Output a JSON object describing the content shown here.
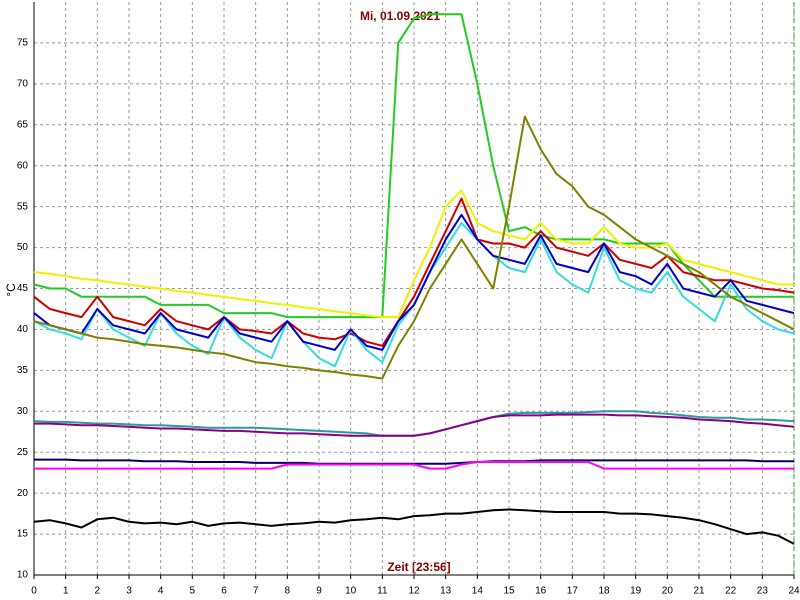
{
  "chart_data": {
    "type": "line",
    "title": "Mi, 01.09.2021",
    "x_label": "Zeit [23:56]",
    "y_label": "°C",
    "xlim": [
      0,
      24
    ],
    "ylim": [
      10,
      80
    ],
    "xticks": [
      0,
      1,
      2,
      3,
      4,
      5,
      6,
      7,
      8,
      9,
      10,
      11,
      12,
      13,
      14,
      15,
      16,
      17,
      18,
      19,
      20,
      21,
      22,
      23,
      24
    ],
    "yticks": [
      10,
      15,
      20,
      25,
      30,
      35,
      40,
      45,
      50,
      55,
      60,
      65,
      70,
      75
    ],
    "grid": true,
    "x": [
      0,
      0.5,
      1,
      1.5,
      2,
      2.5,
      3,
      3.5,
      4,
      4.5,
      5,
      5.5,
      6,
      6.5,
      7,
      7.5,
      8,
      8.5,
      9,
      9.5,
      10,
      10.5,
      11,
      11.5,
      12,
      12.5,
      13,
      13.5,
      14,
      14.5,
      15,
      15.5,
      16,
      16.5,
      17,
      17.5,
      18,
      18.5,
      19,
      19.5,
      20,
      20.5,
      21,
      21.5,
      22,
      22.5,
      23,
      23.5,
      24
    ],
    "series": [
      {
        "color": "#22cc22",
        "values": [
          45.5,
          45,
          45,
          44,
          44,
          44,
          44,
          44,
          43,
          43,
          43,
          43,
          42,
          42,
          42,
          42,
          41.5,
          41.5,
          41.5,
          41.5,
          41.5,
          41.5,
          41.5,
          75,
          78,
          78.5,
          78.5,
          78.5,
          70,
          60,
          52,
          52.5,
          51.5,
          51,
          51,
          51,
          51,
          50.5,
          50.5,
          50.5,
          50.5,
          48,
          46,
          44,
          44,
          44,
          44,
          44,
          44
        ]
      },
      {
        "color": "#f0f000",
        "values": [
          47,
          46.8,
          46.5,
          46.2,
          46,
          45.7,
          45.5,
          45.2,
          45,
          44.7,
          44.5,
          44.2,
          44,
          43.7,
          43.5,
          43.2,
          43,
          42.7,
          42.5,
          42.2,
          42,
          41.7,
          41.5,
          41.5,
          46,
          50,
          55,
          57,
          53,
          52,
          51.5,
          51,
          53,
          51,
          50.5,
          50.5,
          52.5,
          50.5,
          50,
          50,
          50.5,
          48.5,
          48,
          47.5,
          47,
          46.5,
          46,
          45.5,
          45.5
        ]
      },
      {
        "color": "#cc0000",
        "values": [
          44,
          42.5,
          42,
          41.5,
          44,
          41.5,
          41,
          40.5,
          42.5,
          41,
          40.5,
          40,
          41.5,
          40,
          39.8,
          39.5,
          41,
          39.5,
          39,
          38.8,
          39.5,
          38.5,
          38,
          41,
          44,
          48,
          52,
          56,
          51,
          50.5,
          50.5,
          50,
          52,
          50,
          49.5,
          49,
          50.5,
          48.5,
          48,
          47.5,
          49,
          47,
          46.5,
          46,
          46,
          45.5,
          45,
          44.8,
          44.5
        ]
      },
      {
        "color": "#33dddd",
        "values": [
          41,
          40,
          39.5,
          38.8,
          42.5,
          40,
          39,
          38,
          42,
          39.5,
          38,
          37,
          41.5,
          39,
          37.5,
          36.5,
          41,
          38.5,
          36.5,
          35.5,
          40,
          37.5,
          36,
          40.5,
          43,
          47,
          50,
          53,
          51,
          49,
          47.5,
          47,
          51,
          47,
          45.5,
          44.5,
          50,
          46,
          45,
          44.5,
          47,
          44,
          42.5,
          41,
          45.5,
          42.5,
          41,
          40,
          39.5
        ]
      },
      {
        "color": "#0000cc",
        "values": [
          42,
          40.5,
          40,
          39.5,
          42.5,
          40.5,
          40,
          39.5,
          42,
          40,
          39.5,
          39,
          41.5,
          39.5,
          39,
          38.5,
          41,
          38.5,
          38,
          37.5,
          40,
          38,
          37.5,
          41,
          43,
          47,
          51,
          54,
          51,
          49,
          48.5,
          48,
          51.5,
          48,
          47.5,
          47,
          50.5,
          47,
          46.5,
          45.5,
          48,
          45,
          44.5,
          44,
          46,
          43.5,
          43,
          42.5,
          42
        ]
      },
      {
        "color": "#808000",
        "values": [
          41,
          40.5,
          40,
          39.5,
          39,
          38.8,
          38.5,
          38.2,
          38,
          37.8,
          37.5,
          37.2,
          37,
          36.5,
          36,
          35.8,
          35.5,
          35.3,
          35,
          34.8,
          34.5,
          34.3,
          34,
          38,
          41,
          45,
          48,
          51,
          48,
          45,
          55,
          66,
          62,
          59,
          57.5,
          55,
          54,
          52.5,
          51,
          50,
          49,
          48,
          47,
          45.5,
          44,
          43,
          42,
          41,
          40
        ]
      },
      {
        "color": "#339999",
        "values": [
          28.8,
          28.7,
          28.7,
          28.6,
          28.5,
          28.5,
          28.4,
          28.3,
          28.3,
          28.2,
          28.1,
          28,
          28,
          28,
          28,
          27.9,
          27.8,
          27.7,
          27.6,
          27.5,
          27.4,
          27.3,
          27,
          27,
          27,
          27.3,
          27.8,
          28.3,
          28.8,
          29.3,
          29.7,
          29.8,
          29.8,
          29.8,
          29.8,
          29.9,
          30,
          30,
          30,
          29.8,
          29.7,
          29.5,
          29.3,
          29.2,
          29.2,
          29,
          29,
          28.9,
          28.8
        ]
      },
      {
        "color": "#880088",
        "values": [
          28.5,
          28.5,
          28.4,
          28.3,
          28.3,
          28.2,
          28.1,
          28,
          27.9,
          27.9,
          27.8,
          27.7,
          27.6,
          27.6,
          27.5,
          27.4,
          27.3,
          27.3,
          27.2,
          27.1,
          27,
          27,
          27,
          27,
          27,
          27.3,
          27.8,
          28.3,
          28.8,
          29.3,
          29.5,
          29.5,
          29.5,
          29.6,
          29.6,
          29.6,
          29.6,
          29.5,
          29.5,
          29.4,
          29.3,
          29.2,
          29,
          28.9,
          28.8,
          28.6,
          28.5,
          28.3,
          28.1
        ]
      },
      {
        "color": "#000066",
        "values": [
          24.1,
          24.1,
          24.1,
          24,
          24,
          24,
          24,
          23.9,
          23.9,
          23.9,
          23.8,
          23.8,
          23.8,
          23.8,
          23.7,
          23.7,
          23.7,
          23.7,
          23.6,
          23.6,
          23.6,
          23.6,
          23.6,
          23.6,
          23.6,
          23.6,
          23.6,
          23.7,
          23.8,
          23.9,
          23.9,
          23.9,
          24,
          24,
          24,
          24,
          24,
          24,
          24,
          24,
          24,
          24,
          24,
          24,
          24,
          24,
          23.9,
          23.9,
          23.9
        ]
      },
      {
        "color": "#ff00ff",
        "values": [
          23,
          23,
          23,
          23,
          23,
          23,
          23,
          23,
          23,
          23,
          23,
          23,
          23,
          23,
          23,
          23,
          23.5,
          23.5,
          23.5,
          23.5,
          23.5,
          23.5,
          23.5,
          23.5,
          23.5,
          23,
          23,
          23.5,
          23.8,
          23.8,
          23.8,
          23.8,
          23.8,
          23.8,
          23.8,
          23.8,
          23,
          23,
          23,
          23,
          23,
          23,
          23,
          23,
          23,
          23,
          23,
          23,
          23
        ]
      },
      {
        "color": "#000000",
        "values": [
          16.5,
          16.7,
          16.3,
          15.8,
          16.8,
          17,
          16.5,
          16.3,
          16.4,
          16.2,
          16.5,
          16,
          16.3,
          16.4,
          16.2,
          16,
          16.2,
          16.3,
          16.5,
          16.4,
          16.7,
          16.8,
          17,
          16.8,
          17.2,
          17.3,
          17.5,
          17.5,
          17.7,
          17.9,
          18,
          17.9,
          17.8,
          17.7,
          17.7,
          17.7,
          17.7,
          17.5,
          17.5,
          17.4,
          17.2,
          17,
          16.7,
          16.2,
          15.6,
          15,
          15.2,
          14.8,
          13.8
        ]
      }
    ]
  }
}
